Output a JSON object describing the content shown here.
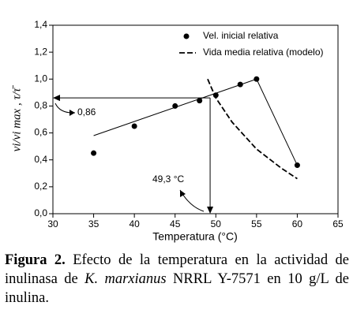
{
  "chart_data": {
    "type": "scatter",
    "x_label": "Temperatura (°C)",
    "y_label": "vi/vi max , τ/τ̄",
    "xlim": [
      30,
      65
    ],
    "xticks": [
      30,
      35,
      40,
      45,
      50,
      55,
      60,
      65
    ],
    "ylim": [
      0,
      1.4
    ],
    "yticks": [
      {
        "value": 0,
        "label": "0,0"
      },
      {
        "value": 0.2,
        "label": "0,2"
      },
      {
        "value": 0.4,
        "label": "0,4"
      },
      {
        "value": 0.6,
        "label": "0,6"
      },
      {
        "value": 0.8,
        "label": "0,8"
      },
      {
        "value": 1.0,
        "label": "1,0"
      },
      {
        "value": 1.2,
        "label": "1,2"
      },
      {
        "value": 1.4,
        "label": "1,4"
      }
    ],
    "series": [
      {
        "name": "Vel. inicial relativa",
        "color": "#000000",
        "style": "marker",
        "x": [
          35,
          40,
          45,
          48,
          50,
          53,
          55,
          60
        ],
        "values": [
          0.45,
          0.65,
          0.8,
          0.84,
          0.88,
          0.96,
          1.0,
          0.36
        ]
      },
      {
        "name": "Vida media relativa (modelo)",
        "color": "#000000",
        "style": "dashed",
        "x": [
          49,
          50,
          52,
          55,
          58,
          60
        ],
        "values": [
          1.0,
          0.86,
          0.68,
          0.48,
          0.34,
          0.26
        ]
      }
    ],
    "fit": {
      "color": "#000000",
      "x": [
        35,
        55,
        60
      ],
      "values": [
        0.58,
        1.0,
        0.36
      ]
    },
    "annotations": [
      {
        "value": 0.86,
        "label": "0,86"
      },
      {
        "value": 49.3,
        "label": "49,3 °C"
      }
    ]
  },
  "caption": {
    "label": "Figura 2.",
    "text": "Efecto de la temperatura en la actividad de inulinasa de",
    "species": "K. marxianus",
    "rest": "NRRL Y-7571 en 10 g/L de inulina."
  }
}
